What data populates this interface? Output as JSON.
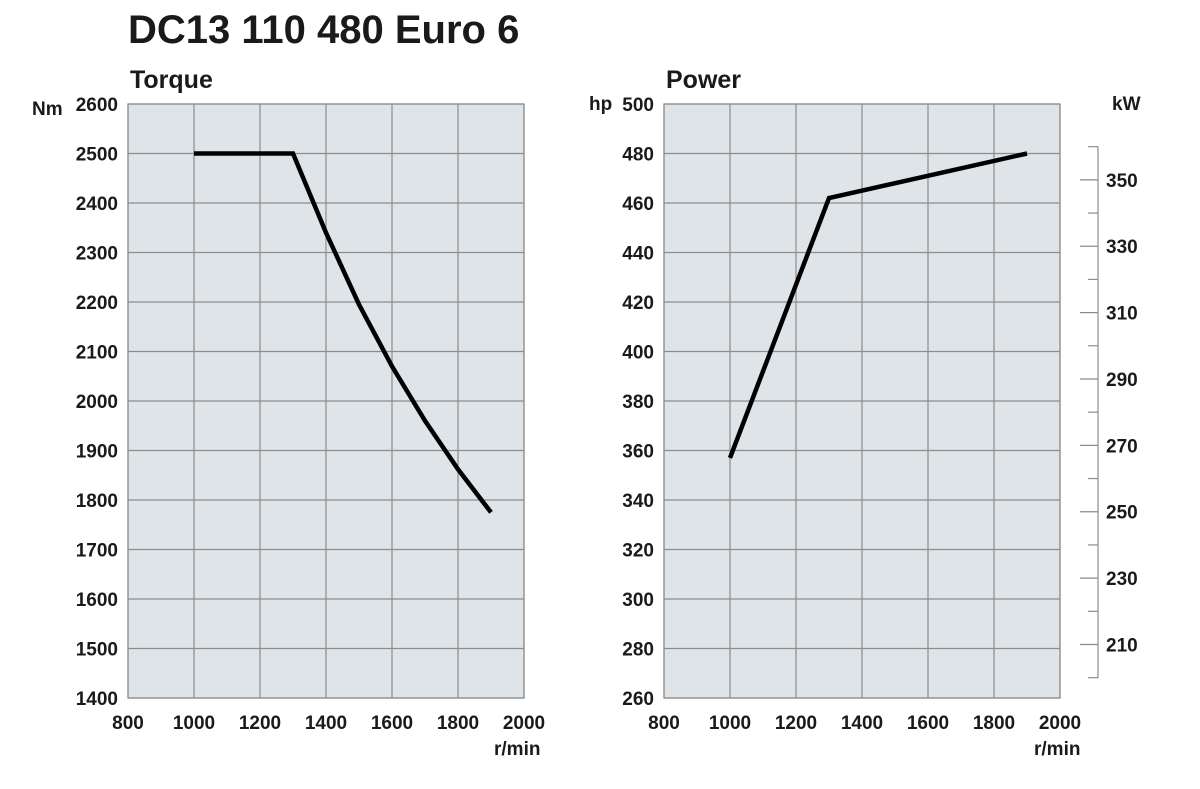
{
  "title": "DC13 110 480 Euro 6",
  "chart_data": [
    {
      "type": "line",
      "title": "Torque",
      "ylabel": "Nm",
      "xlabel": "r/min",
      "xlim": [
        800,
        2000
      ],
      "ylim": [
        1400,
        2600
      ],
      "x_ticks": [
        "800",
        "1000",
        "1200",
        "1400",
        "1600",
        "1800",
        "2000"
      ],
      "y_ticks": [
        "1400",
        "1500",
        "1600",
        "1700",
        "1800",
        "1900",
        "2000",
        "2100",
        "2200",
        "2300",
        "2400",
        "2500",
        "2600"
      ],
      "grid": true,
      "series": [
        {
          "x": [
            1000,
            1300,
            1400,
            1500,
            1600,
            1700,
            1800,
            1900
          ],
          "y": [
            2500,
            2500,
            2340,
            2195,
            2070,
            1960,
            1862,
            1775
          ]
        }
      ]
    },
    {
      "type": "line",
      "title": "Power",
      "ylabel": "hp",
      "y2label": "kW",
      "xlabel": "r/min",
      "xlim": [
        800,
        2000
      ],
      "ylim": [
        260,
        500
      ],
      "x_ticks": [
        "800",
        "1000",
        "1200",
        "1400",
        "1600",
        "1800",
        "2000"
      ],
      "y_ticks": [
        "260",
        "280",
        "300",
        "320",
        "340",
        "360",
        "380",
        "400",
        "420",
        "440",
        "460",
        "480",
        "500"
      ],
      "y2_ticks": [
        "210",
        "230",
        "250",
        "270",
        "290",
        "310",
        "330",
        "350"
      ],
      "grid": true,
      "series": [
        {
          "x": [
            1000,
            1300,
            1900
          ],
          "y": [
            357,
            462,
            480
          ]
        }
      ]
    }
  ]
}
